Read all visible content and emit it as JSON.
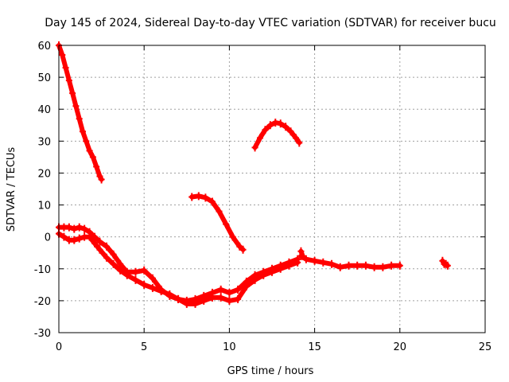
{
  "chart_data": {
    "type": "scatter",
    "title": "Day 145 of 2024, Sidereal Day-to-day VTEC variation (SDTVAR) for receiver bucu",
    "xlabel": "GPS time / hours",
    "ylabel": "SDTVAR / TECUs",
    "xlim": [
      0,
      25
    ],
    "ylim": [
      -30,
      60
    ],
    "xticks": [
      0,
      5,
      10,
      15,
      20,
      25
    ],
    "yticks": [
      -30,
      -20,
      -10,
      0,
      10,
      20,
      30,
      40,
      50,
      60
    ],
    "xtick_labels": [
      "0",
      "5",
      "10",
      "15",
      "20",
      "25"
    ],
    "ytick_labels": [
      "-30",
      "-20",
      "-10",
      "0",
      "10",
      "20",
      "30",
      "40",
      "50",
      "60"
    ],
    "grid": true,
    "legend": "none",
    "marker_color": "#ff0000",
    "series": [
      {
        "name": "arc-descending-high",
        "x": [
          0.0,
          0.2,
          0.4,
          0.6,
          0.8,
          1.0,
          1.2,
          1.4,
          1.6,
          1.8,
          2.0,
          2.2,
          2.4,
          2.5
        ],
        "y": [
          60,
          57,
          53,
          49,
          45,
          41,
          37,
          33,
          30,
          27,
          25,
          22,
          19,
          18
        ]
      },
      {
        "name": "arc-mid-descending",
        "x": [
          7.8,
          8.2,
          8.6,
          9.0,
          9.4,
          9.8,
          10.2,
          10.6,
          10.8
        ],
        "y": [
          12.5,
          12.8,
          12.3,
          11,
          8,
          4,
          0,
          -3,
          -4
        ]
      },
      {
        "name": "arc-hump",
        "x": [
          11.5,
          11.8,
          12.1,
          12.4,
          12.7,
          13.0,
          13.3,
          13.6,
          13.9,
          14.1
        ],
        "y": [
          28,
          31,
          33.5,
          35,
          35.8,
          35.5,
          34.5,
          33,
          31,
          29.5
        ]
      },
      {
        "name": "arc-low-upper",
        "x": [
          0.0,
          0.3,
          0.6,
          0.9,
          1.2,
          1.5,
          1.8,
          2.1,
          2.4,
          2.8,
          3.2,
          3.6,
          4.0,
          4.5,
          5.0,
          5.5,
          6.0,
          6.5,
          7.0,
          7.5,
          8.0,
          8.5,
          9.0,
          9.5,
          10.0,
          10.5,
          11.0,
          11.5,
          12.0,
          12.5,
          13.0,
          13.5,
          14.0
        ],
        "y": [
          3,
          3,
          3,
          2.5,
          3,
          2.5,
          1.5,
          0,
          -1.5,
          -3,
          -5.5,
          -8.5,
          -11,
          -11,
          -10.5,
          -13,
          -16.5,
          -18.5,
          -19.5,
          -20,
          -19.5,
          -18.5,
          -17.5,
          -16.5,
          -17.5,
          -16.5,
          -14,
          -12,
          -11,
          -10,
          -9,
          -8,
          -7
        ]
      },
      {
        "name": "arc-low-lower",
        "x": [
          0.0,
          0.3,
          0.6,
          0.9,
          1.2,
          1.5,
          1.8,
          2.1,
          2.4,
          2.8,
          3.2,
          3.6,
          4.0,
          4.5,
          5.0,
          5.5,
          6.0,
          6.5,
          7.0,
          7.5,
          8.0,
          8.5,
          9.0,
          9.5,
          10.0,
          10.5,
          11.0,
          11.5,
          12.0,
          12.5,
          13.0,
          13.5,
          14.0
        ],
        "y": [
          1,
          0,
          -1,
          -1,
          -0.5,
          0,
          0,
          -2,
          -4,
          -6.5,
          -8.5,
          -10.5,
          -12,
          -13.5,
          -15,
          -16,
          -17,
          -18,
          -19.5,
          -21,
          -21,
          -20,
          -19,
          -19,
          -20,
          -19.5,
          -15.5,
          -13.5,
          -12,
          -11,
          -10,
          -9,
          -8
        ]
      },
      {
        "name": "arc-tail",
        "x": [
          14.2,
          14.5,
          15.0,
          15.5,
          16.0,
          16.5,
          17.0,
          17.5,
          18.0,
          18.5,
          19.0,
          19.5,
          20.0
        ],
        "y": [
          -6,
          -7,
          -7.5,
          -8,
          -8.5,
          -9.5,
          -9,
          -9,
          -9,
          -9.5,
          -9.5,
          -9,
          -9
        ]
      },
      {
        "name": "spike-near-14",
        "x": [
          14.2,
          14.3
        ],
        "y": [
          -4.5,
          -6
        ]
      },
      {
        "name": "arc-isolated",
        "x": [
          22.5,
          22.6,
          22.7,
          22.8
        ],
        "y": [
          -7.5,
          -8.5,
          -8.5,
          -9
        ]
      }
    ]
  }
}
